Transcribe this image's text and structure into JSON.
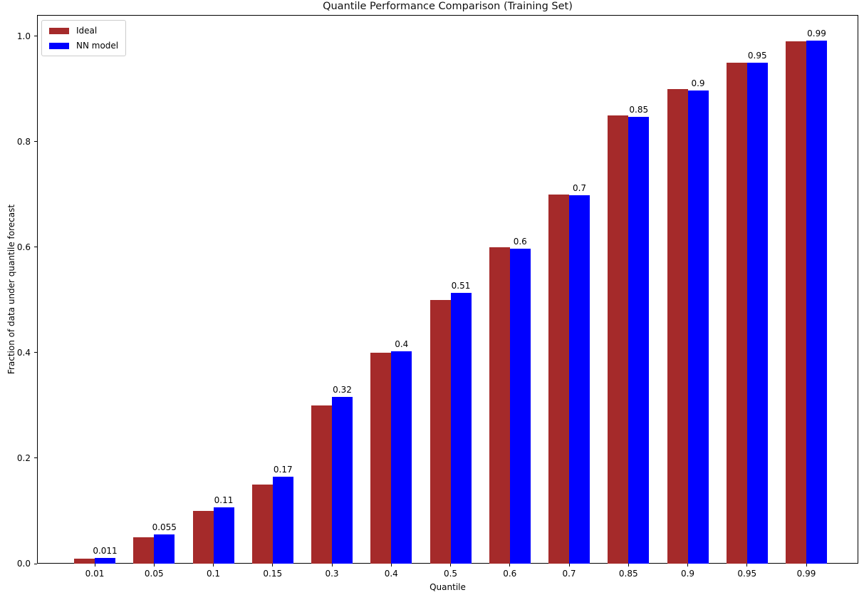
{
  "chart_data": {
    "type": "bar",
    "title": "Quantile Performance Comparison (Training Set)",
    "xlabel": "Quantile",
    "ylabel": "Fraction of data under quantile forecast",
    "categories": [
      "0.01",
      "0.05",
      "0.1",
      "0.15",
      "0.3",
      "0.4",
      "0.5",
      "0.6",
      "0.7",
      "0.85",
      "0.9",
      "0.95",
      "0.99"
    ],
    "series": [
      {
        "name": "Ideal",
        "color": "#a52a2a",
        "values": [
          0.01,
          0.05,
          0.1,
          0.15,
          0.3,
          0.4,
          0.5,
          0.6,
          0.7,
          0.85,
          0.9,
          0.95,
          0.99
        ]
      },
      {
        "name": "NN model",
        "color": "#0000ff",
        "values": [
          0.011,
          0.055,
          0.107,
          0.165,
          0.316,
          0.402,
          0.513,
          0.597,
          0.698,
          0.847,
          0.897,
          0.95,
          0.992
        ]
      }
    ],
    "bar_labels": [
      "0.011",
      "0.055",
      "0.11",
      "0.17",
      "0.32",
      "0.4",
      "0.51",
      "0.6",
      "0.7",
      "0.85",
      "0.9",
      "0.95",
      "0.99"
    ],
    "bar_labels_on_series": "NN model",
    "yticks": [
      0.0,
      0.2,
      0.4,
      0.6,
      0.8,
      1.0
    ],
    "ytick_labels": [
      "0.0",
      "0.2",
      "0.4",
      "0.6",
      "0.8",
      "1.0"
    ],
    "ylim": [
      0,
      1.04
    ],
    "legend_position": "upper left",
    "grid": false
  }
}
